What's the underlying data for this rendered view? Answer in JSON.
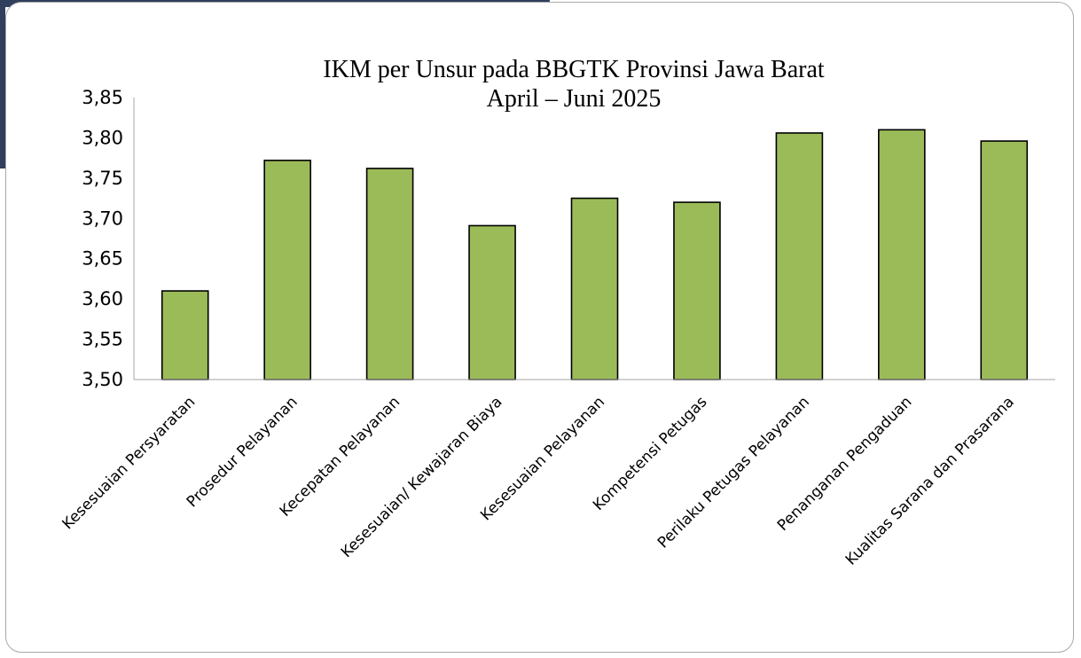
{
  "chart_data": {
    "type": "bar",
    "title": "IKM per Unsur pada BBGTK Provinsi Jawa Barat",
    "subtitle": "April – Juni 2025",
    "categories": [
      "Kesesuaian Persyaratan",
      "Prosedur Pelayanan",
      "Kecepatan Pelayanan",
      "Kesesuaian/ Kewajaran Biaya",
      "Kesesuaian Pelayanan",
      "Kompetensi Petugas",
      "Perilaku Petugas Pelayanan",
      "Penanganan Pengaduan",
      "Kualitas Sarana dan Prasarana"
    ],
    "values": [
      3.61,
      3.772,
      3.762,
      3.691,
      3.725,
      3.72,
      3.806,
      3.81,
      3.796
    ],
    "ylim": [
      3.5,
      3.85
    ],
    "yticks": [
      "3,50",
      "3,55",
      "3,60",
      "3,65",
      "3,70",
      "3,75",
      "3,80",
      "3,85"
    ],
    "xlabel": "",
    "ylabel": "",
    "grid": false,
    "legend": "none",
    "bar_color": "#9bbb59",
    "bar_edge_color": "#000000"
  }
}
